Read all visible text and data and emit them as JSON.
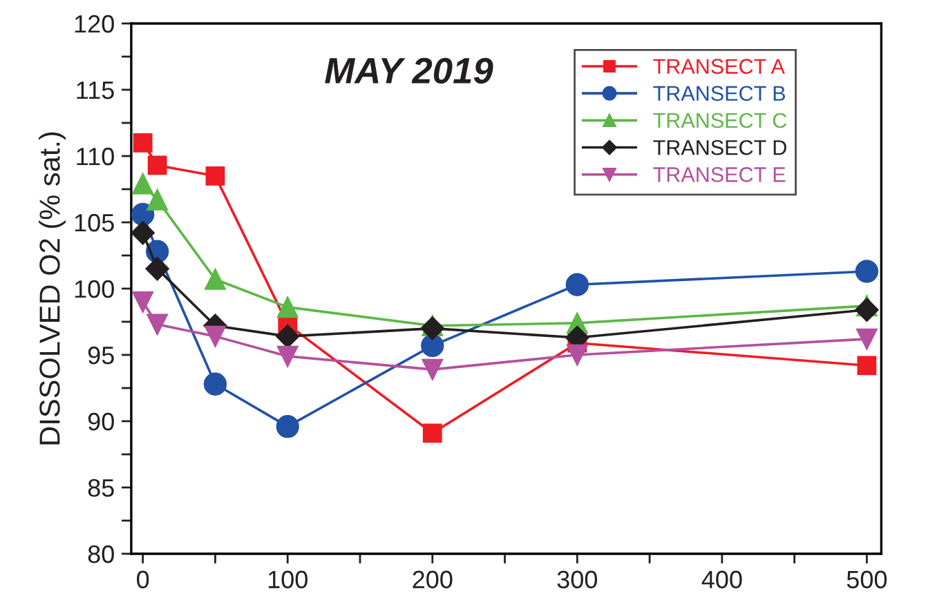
{
  "chart_data": {
    "type": "line",
    "title": "MAY 2019",
    "ylabel": "DISSOLVED O2 (% sat.)",
    "x": [
      0,
      10,
      50,
      100,
      200,
      300,
      500
    ],
    "series": [
      {
        "name": "TRANSECT A",
        "color": "#ee1c25",
        "marker": "square",
        "values": [
          111.0,
          109.3,
          108.5,
          97.3,
          89.1,
          95.9,
          94.2
        ]
      },
      {
        "name": "TRANSECT B",
        "color": "#2152a6",
        "marker": "circle",
        "values": [
          105.6,
          102.8,
          92.8,
          89.6,
          95.7,
          100.3,
          101.3
        ]
      },
      {
        "name": "TRANSECT C",
        "color": "#5bb846",
        "marker": "triangle",
        "values": [
          107.9,
          106.7,
          100.7,
          98.6,
          97.2,
          97.4,
          98.7
        ]
      },
      {
        "name": "TRANSECT D",
        "color": "#231f20",
        "marker": "diamond",
        "values": [
          104.2,
          101.5,
          97.2,
          96.4,
          97.0,
          96.3,
          98.4
        ]
      },
      {
        "name": "TRANSECT E",
        "color": "#b4509e",
        "marker": "triangle_down",
        "values": [
          99.0,
          97.3,
          96.4,
          94.9,
          93.9,
          95.0,
          96.2
        ]
      }
    ],
    "xlim": [
      -8,
      510
    ],
    "ylim": [
      80,
      120
    ],
    "xticks": [
      0,
      {
        "value": 50,
        "label": null
      },
      100,
      {
        "value": 150,
        "label": null
      },
      200,
      {
        "value": 250,
        "label": null
      },
      300,
      {
        "value": 350,
        "label": null
      },
      400,
      {
        "value": 450,
        "label": null
      },
      500
    ],
    "yticks": [
      80,
      {
        "value": 82.5,
        "label": null
      },
      85,
      {
        "value": 87.5,
        "label": null
      },
      90,
      {
        "value": 92.5,
        "label": null
      },
      95,
      {
        "value": 97.5,
        "label": null
      },
      100,
      {
        "value": 102.5,
        "label": null
      },
      105,
      {
        "value": 107.5,
        "label": null
      },
      110,
      {
        "value": 112.5,
        "label": null
      },
      115,
      {
        "value": 117.5,
        "label": null
      },
      120
    ],
    "grid": false,
    "legend": "top right",
    "line_style": "solid"
  }
}
